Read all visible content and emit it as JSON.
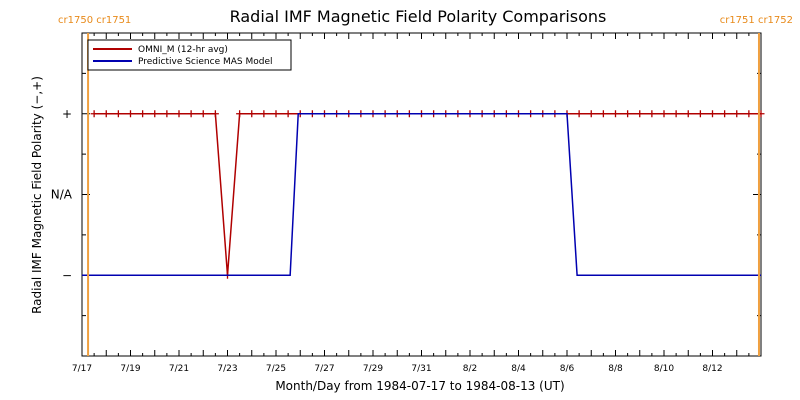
{
  "chart_data": {
    "type": "line",
    "title": "Radial IMF Magnetic Field Polarity Comparisons",
    "xlabel": "Month/Day from 1984-07-17 to 1984-08-13 (UT)",
    "ylabel": "Radial IMF Magnetic Field Polarity (−,+)",
    "x_range": [
      "1984-07-17T00:00",
      "1984-08-14T00:00"
    ],
    "x_ticks": [
      {
        "date": "1984-07-17",
        "label": "7/17"
      },
      {
        "date": "1984-07-19",
        "label": "7/19"
      },
      {
        "date": "1984-07-21",
        "label": "7/21"
      },
      {
        "date": "1984-07-23",
        "label": "7/23"
      },
      {
        "date": "1984-07-25",
        "label": "7/25"
      },
      {
        "date": "1984-07-27",
        "label": "7/27"
      },
      {
        "date": "1984-07-29",
        "label": "7/29"
      },
      {
        "date": "1984-07-31",
        "label": "7/31"
      },
      {
        "date": "1984-08-02",
        "label": "8/2"
      },
      {
        "date": "1984-08-04",
        "label": "8/4"
      },
      {
        "date": "1984-08-06",
        "label": "8/6"
      },
      {
        "date": "1984-08-08",
        "label": "8/8"
      },
      {
        "date": "1984-08-10",
        "label": "8/10"
      },
      {
        "date": "1984-08-12",
        "label": "8/12"
      }
    ],
    "y_categories": [
      {
        "value": 1,
        "label": "+"
      },
      {
        "value": 0,
        "label": "N/A"
      },
      {
        "value": -1,
        "label": "−"
      }
    ],
    "ylim": [
      -2,
      2
    ],
    "series": [
      {
        "name": "OMNI_M (12-hr avg)",
        "color": "#b00000",
        "marker": "plus",
        "points": [
          [
            "1984-07-17T12:00",
            1
          ],
          [
            "1984-07-18T00:00",
            1
          ],
          [
            "1984-07-18T12:00",
            1
          ],
          [
            "1984-07-19T00:00",
            1
          ],
          [
            "1984-07-19T12:00",
            1
          ],
          [
            "1984-07-20T00:00",
            1
          ],
          [
            "1984-07-20T12:00",
            1
          ],
          [
            "1984-07-21T00:00",
            1
          ],
          [
            "1984-07-21T12:00",
            1
          ],
          [
            "1984-07-22T00:00",
            1
          ],
          [
            "1984-07-22T12:00",
            1
          ],
          [
            "1984-07-23T00:00",
            -1
          ],
          [
            "1984-07-23T12:00",
            1
          ],
          [
            "1984-07-24T00:00",
            1
          ],
          [
            "1984-07-24T12:00",
            1
          ],
          [
            "1984-07-25T00:00",
            1
          ],
          [
            "1984-07-25T12:00",
            1
          ],
          [
            "1984-07-26T00:00",
            1
          ],
          [
            "1984-07-26T12:00",
            1
          ],
          [
            "1984-07-27T00:00",
            1
          ],
          [
            "1984-07-27T12:00",
            1
          ],
          [
            "1984-07-28T00:00",
            1
          ],
          [
            "1984-07-28T12:00",
            1
          ],
          [
            "1984-07-29T00:00",
            1
          ],
          [
            "1984-07-29T12:00",
            1
          ],
          [
            "1984-07-30T00:00",
            1
          ],
          [
            "1984-07-30T12:00",
            1
          ],
          [
            "1984-07-31T00:00",
            1
          ],
          [
            "1984-07-31T12:00",
            1
          ],
          [
            "1984-08-01T00:00",
            1
          ],
          [
            "1984-08-01T12:00",
            1
          ],
          [
            "1984-08-02T00:00",
            1
          ],
          [
            "1984-08-02T12:00",
            1
          ],
          [
            "1984-08-03T00:00",
            1
          ],
          [
            "1984-08-03T12:00",
            1
          ],
          [
            "1984-08-04T00:00",
            1
          ],
          [
            "1984-08-04T12:00",
            1
          ],
          [
            "1984-08-05T00:00",
            1
          ],
          [
            "1984-08-05T12:00",
            1
          ],
          [
            "1984-08-06T00:00",
            1
          ],
          [
            "1984-08-06T12:00",
            1
          ],
          [
            "1984-08-07T00:00",
            1
          ],
          [
            "1984-08-07T12:00",
            1
          ],
          [
            "1984-08-08T00:00",
            1
          ],
          [
            "1984-08-08T12:00",
            1
          ],
          [
            "1984-08-09T00:00",
            1
          ],
          [
            "1984-08-09T12:00",
            1
          ],
          [
            "1984-08-10T00:00",
            1
          ],
          [
            "1984-08-10T12:00",
            1
          ],
          [
            "1984-08-11T00:00",
            1
          ],
          [
            "1984-08-11T12:00",
            1
          ],
          [
            "1984-08-12T00:00",
            1
          ],
          [
            "1984-08-12T12:00",
            1
          ],
          [
            "1984-08-13T00:00",
            1
          ],
          [
            "1984-08-13T12:00",
            1
          ],
          [
            "1984-08-14T00:00",
            1
          ]
        ]
      },
      {
        "name": "Predictive Science MAS Model",
        "color": "#0000b0",
        "marker": "none",
        "points": [
          [
            "1984-07-17T00:00",
            -1
          ],
          [
            "1984-07-25T14:00",
            -1
          ],
          [
            "1984-07-25T22:00",
            1
          ],
          [
            "1984-08-06T00:00",
            1
          ],
          [
            "1984-08-06T10:00",
            -1
          ],
          [
            "1984-08-14T00:00",
            -1
          ]
        ]
      }
    ],
    "carrington_markers": [
      {
        "date": "1984-07-17T06:00",
        "labels": [
          "cr1750",
          "cr1751"
        ],
        "label_side": "left"
      },
      {
        "date": "1984-08-13T22:00",
        "labels": [
          "cr1751",
          "cr1752"
        ],
        "label_side": "right"
      }
    ],
    "marker_color": "#f0a040",
    "legend_position": "top-left"
  }
}
